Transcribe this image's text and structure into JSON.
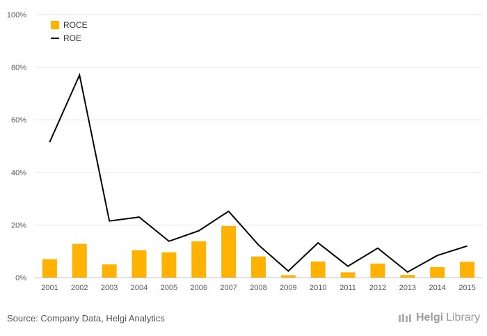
{
  "chart_data": {
    "type": "bar",
    "categories": [
      "2001",
      "2002",
      "2003",
      "2004",
      "2005",
      "2006",
      "2007",
      "2008",
      "2009",
      "2010",
      "2011",
      "2012",
      "2013",
      "2014",
      "2015"
    ],
    "series": [
      {
        "name": "ROCE",
        "type": "bar",
        "color": "#FFB300",
        "values": [
          7,
          12.8,
          5,
          10.4,
          9.6,
          13.8,
          19.6,
          8,
          0.9,
          6.1,
          2,
          5.3,
          1,
          4,
          6
        ]
      },
      {
        "name": "ROE",
        "type": "line",
        "color": "#000000",
        "values": [
          51.5,
          77,
          21.5,
          23,
          13.8,
          17.8,
          25.2,
          12.4,
          2.5,
          13.2,
          4.3,
          11.2,
          2.1,
          8.4,
          12
        ]
      }
    ],
    "ylim": [
      0,
      100
    ],
    "yticks": [
      "0%",
      "20%",
      "40%",
      "60%",
      "80%",
      "100%"
    ],
    "ytick_values": [
      0,
      20,
      40,
      60,
      80,
      100
    ],
    "grid": true,
    "legend": "top-left",
    "colors": {
      "grid": "#e6e6e6",
      "axis_text": "#555555"
    }
  },
  "footer": {
    "source": "Source: Company Data, Helgi Analytics",
    "brand_bold": "Helgi",
    "brand_rest": "Library"
  }
}
